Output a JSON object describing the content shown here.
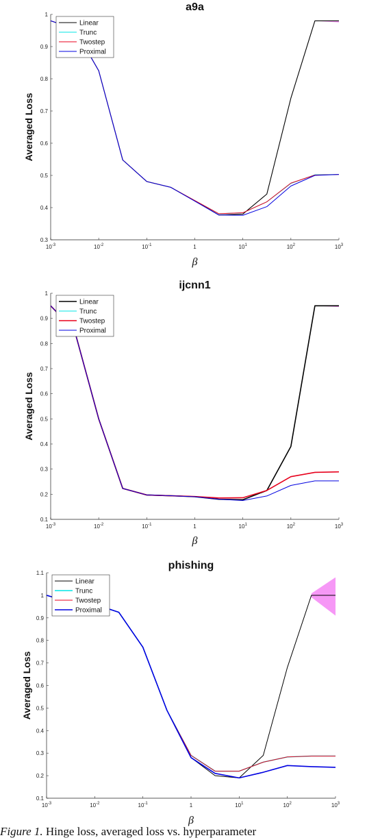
{
  "x_axis_label": "β",
  "y_axis_label": "Averaged Loss",
  "x_tick_labels": [
    {
      "base": "10",
      "exp": "-3"
    },
    {
      "base": "10",
      "exp": "-2"
    },
    {
      "base": "10",
      "exp": "-1"
    },
    {
      "base": "1",
      "exp": ""
    },
    {
      "base": "10",
      "exp": "1"
    },
    {
      "base": "10",
      "exp": "2"
    },
    {
      "base": "10",
      "exp": "3"
    }
  ],
  "colors": {
    "Linear": "#000000",
    "Trunc": "#00e5e5",
    "Twostep": "#e8001c",
    "Proximal": "#0000e0",
    "band": "#ee44ee"
  },
  "caption": {
    "lead": "Figure 1.",
    "text": " Hinge loss, averaged loss vs. hyperparameter"
  },
  "chart_data": [
    {
      "type": "line",
      "title": "a9a",
      "xscale": "log",
      "x": [
        0.001,
        0.00316,
        0.01,
        0.0316,
        0.1,
        0.316,
        1,
        3.16,
        10,
        31.6,
        100,
        316,
        1000
      ],
      "ylim": [
        0.3,
        1.0
      ],
      "yticks": [
        "0.3",
        "0.4",
        "0.5",
        "0.6",
        "0.7",
        "0.8",
        "0.9",
        "1"
      ],
      "legend_position": "top-left",
      "series": [
        {
          "name": "Linear",
          "values": [
            0.98,
            0.955,
            0.825,
            0.548,
            0.481,
            0.463,
            0.421,
            0.377,
            0.38,
            0.442,
            0.74,
            0.98,
            0.98
          ],
          "band": [
            0.975,
            0.98
          ]
        },
        {
          "name": "Trunc",
          "values": [
            0.98,
            0.955,
            0.825,
            0.548,
            0.481,
            0.463,
            0.422,
            0.381,
            0.384,
            0.418,
            0.475,
            0.502,
            0.503
          ]
        },
        {
          "name": "Twostep",
          "values": [
            0.98,
            0.955,
            0.825,
            0.548,
            0.481,
            0.463,
            0.422,
            0.381,
            0.384,
            0.418,
            0.476,
            0.501,
            0.503
          ]
        },
        {
          "name": "Proximal",
          "values": [
            0.98,
            0.955,
            0.825,
            0.548,
            0.481,
            0.463,
            0.42,
            0.377,
            0.376,
            0.403,
            0.467,
            0.5,
            0.503
          ]
        }
      ]
    },
    {
      "type": "line",
      "title": "ijcnn1",
      "xscale": "log",
      "x": [
        0.001,
        0.00316,
        0.01,
        0.0316,
        0.1,
        0.316,
        1,
        3.16,
        10,
        31.6,
        100,
        316,
        1000
      ],
      "ylim": [
        0.1,
        1.0
      ],
      "yticks": [
        "0.1",
        "0.2",
        "0.3",
        "0.4",
        "0.5",
        "0.6",
        "0.7",
        "0.8",
        "0.9",
        "1"
      ],
      "legend_position": "top-left",
      "series": [
        {
          "name": "Linear",
          "values": [
            0.95,
            0.85,
            0.5,
            0.223,
            0.197,
            0.194,
            0.19,
            0.18,
            0.178,
            0.215,
            0.39,
            0.95,
            0.95
          ],
          "band": [
            0.945,
            0.95
          ]
        },
        {
          "name": "Trunc",
          "values": [
            0.95,
            0.85,
            0.5,
            0.223,
            0.197,
            0.194,
            0.191,
            0.185,
            0.186,
            0.215,
            0.27,
            0.287,
            0.289
          ]
        },
        {
          "name": "Twostep",
          "values": [
            0.95,
            0.85,
            0.5,
            0.223,
            0.197,
            0.194,
            0.191,
            0.185,
            0.186,
            0.215,
            0.27,
            0.287,
            0.289
          ]
        },
        {
          "name": "Proximal",
          "values": [
            0.95,
            0.85,
            0.5,
            0.223,
            0.197,
            0.194,
            0.19,
            0.18,
            0.175,
            0.193,
            0.235,
            0.253,
            0.253
          ]
        }
      ]
    },
    {
      "type": "line",
      "title": "phishing",
      "xscale": "log",
      "x": [
        0.001,
        0.00316,
        0.01,
        0.0316,
        0.1,
        0.316,
        1,
        3.16,
        10,
        31.6,
        100,
        316,
        1000
      ],
      "ylim": [
        0.1,
        1.1
      ],
      "yticks": [
        "0.1",
        "0.2",
        "0.3",
        "0.4",
        "0.5",
        "0.6",
        "0.7",
        "0.8",
        "0.9",
        "1",
        "1.1"
      ],
      "legend_position": "top-left",
      "series": [
        {
          "name": "Linear",
          "values": [
            1.0,
            0.97,
            0.96,
            0.925,
            0.77,
            0.49,
            0.28,
            0.2,
            0.19,
            0.29,
            0.68,
            1.0,
            1.0
          ],
          "band": [
            0.91,
            1.08
          ]
        },
        {
          "name": "Trunc",
          "values": [
            1.0,
            0.97,
            0.96,
            0.925,
            0.77,
            0.49,
            0.29,
            0.22,
            0.22,
            0.26,
            0.283,
            0.287,
            0.287
          ]
        },
        {
          "name": "Twostep",
          "values": [
            1.0,
            0.97,
            0.96,
            0.925,
            0.77,
            0.49,
            0.29,
            0.22,
            0.22,
            0.26,
            0.283,
            0.287,
            0.287
          ]
        },
        {
          "name": "Proximal",
          "values": [
            1.0,
            0.97,
            0.96,
            0.925,
            0.77,
            0.49,
            0.28,
            0.21,
            0.19,
            0.215,
            0.245,
            0.24,
            0.237
          ]
        }
      ]
    }
  ]
}
